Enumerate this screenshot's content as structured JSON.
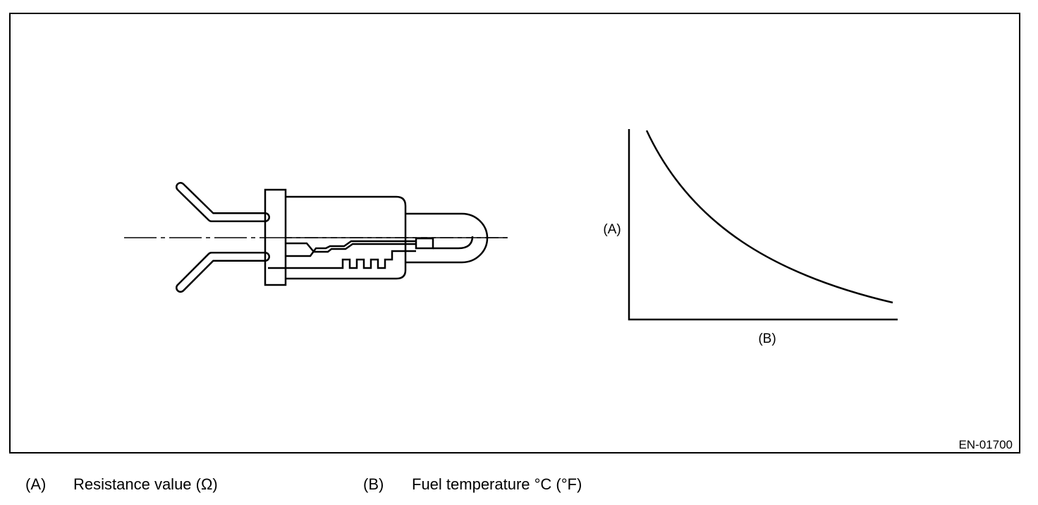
{
  "figure": {
    "graph": {
      "y_label": "(A)",
      "x_label": "(B)"
    },
    "code": "EN-01700"
  },
  "legend": [
    {
      "key": "(A)",
      "text": "Resistance value (Ω)"
    },
    {
      "key": "(B)",
      "text": "Fuel temperature °C (°F)"
    }
  ]
}
